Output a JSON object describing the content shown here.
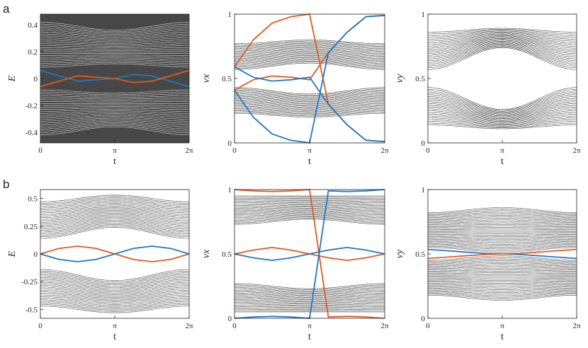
{
  "panel_labels": [
    "a",
    "b"
  ],
  "colors": {
    "blue": "#1f77c4",
    "orange": "#e05a1e",
    "bands": "#444444"
  },
  "chart_data": [
    {
      "type": "line",
      "panel": "a",
      "xlabel": "t",
      "ylabel": "E",
      "xticks": [
        "0",
        "π",
        "2π"
      ],
      "xlim": [
        0,
        6.2832
      ],
      "ylim": [
        -0.48,
        0.48
      ],
      "yticks": [
        -0.4,
        -0.2,
        0,
        0.2,
        0.4
      ],
      "ytick_labels": [
        "-0.4",
        "-0.2",
        "0",
        "0.2",
        "0.4"
      ],
      "bands": {
        "n": 24,
        "inner_min": 0.085,
        "inner_max": 0.11,
        "outer_min": 0.42,
        "outer_max": 0.36,
        "shape": "bump",
        "upper": true,
        "lower": true
      },
      "series": [
        {
          "color": "blue",
          "x": [
            0,
            0.785,
            1.571,
            2.356,
            3.142,
            3.927,
            4.712,
            5.498,
            6.283
          ],
          "values": [
            0.06,
            0.02,
            -0.02,
            -0.01,
            0.0,
            0.03,
            0.02,
            -0.02,
            -0.06
          ]
        },
        {
          "color": "orange",
          "x": [
            0,
            0.785,
            1.571,
            2.356,
            3.142,
            3.927,
            4.712,
            5.498,
            6.283
          ],
          "values": [
            -0.06,
            -0.02,
            0.02,
            0.01,
            0.0,
            -0.03,
            -0.02,
            0.02,
            0.06
          ]
        }
      ]
    },
    {
      "type": "line",
      "panel": "a",
      "xlabel": "t",
      "ylabel": "νx",
      "xticks": [
        "0",
        "π",
        "2π"
      ],
      "xlim": [
        0,
        6.2832
      ],
      "ylim": [
        0,
        1
      ],
      "yticks": [
        0,
        0.5,
        1
      ],
      "ytick_labels": [
        "0",
        "0.5",
        "1"
      ],
      "bands": {
        "n": 22,
        "inner_min": 0.3,
        "inner_max": 0.27,
        "outer_min": 0.12,
        "outer_max": 0.07,
        "shape": "dip",
        "upper": true,
        "lower": true,
        "around": 0.5
      },
      "series": [
        {
          "color": "orange",
          "x": [
            0,
            0.785,
            1.571,
            2.356,
            3.142,
            3.927,
            4.712,
            5.498,
            6.283
          ],
          "values": [
            0.41,
            0.49,
            0.52,
            0.51,
            0.49,
            0.7,
            0.86,
            0.98,
            0.99
          ]
        },
        {
          "color": "orange",
          "x": [
            0,
            0.785,
            1.571,
            2.356,
            3.142,
            3.927,
            4.712,
            5.498,
            6.283
          ],
          "values": [
            0.59,
            0.8,
            0.93,
            0.98,
            1.0,
            0.3,
            0.14,
            0.02,
            0.01
          ]
        },
        {
          "color": "blue",
          "x": [
            0,
            0.785,
            1.571,
            2.356,
            3.142,
            3.927,
            4.712,
            5.498,
            6.283
          ],
          "values": [
            0.59,
            0.51,
            0.48,
            0.49,
            0.51,
            0.3,
            0.14,
            0.02,
            0.01
          ]
        },
        {
          "color": "blue",
          "x": [
            0,
            0.785,
            1.571,
            2.356,
            3.142,
            3.927,
            4.712,
            5.498,
            6.283
          ],
          "values": [
            0.41,
            0.2,
            0.07,
            0.02,
            0.0,
            0.7,
            0.86,
            0.98,
            0.99
          ]
        }
      ]
    },
    {
      "type": "line",
      "panel": "a",
      "xlabel": "t",
      "ylabel": "νy",
      "xticks": [
        "0",
        "π",
        "2π"
      ],
      "xlim": [
        0,
        6.2832
      ],
      "ylim": [
        0,
        1
      ],
      "yticks": [
        0,
        0.5,
        1
      ],
      "ytick_labels": [
        "0",
        "0.5",
        "1"
      ],
      "bands": {
        "n": 22,
        "inner_min": 0.24,
        "inner_max": 0.07,
        "outer_min": 0.39,
        "outer_max": 0.36,
        "shape": "dip",
        "upper": true,
        "lower": true,
        "around": 0.5
      },
      "series": []
    },
    {
      "type": "line",
      "panel": "b",
      "xlabel": "t",
      "ylabel": "E",
      "xticks": [
        "0",
        "π",
        "2π"
      ],
      "xlim": [
        0,
        6.2832
      ],
      "ylim": [
        -0.58,
        0.58
      ],
      "yticks": [
        -0.5,
        -0.25,
        0,
        0.25,
        0.5
      ],
      "ytick_labels": [
        "-0.5",
        "-0.25",
        "0",
        "0.25",
        "0.5"
      ],
      "bands": {
        "n": 24,
        "inner_min": 0.14,
        "inner_max": 0.24,
        "outer_min": 0.47,
        "outer_max": 0.53,
        "shape": "bump",
        "upper": true,
        "lower": true
      },
      "series": [
        {
          "color": "orange",
          "x": [
            0,
            0.785,
            1.571,
            2.356,
            3.142,
            3.927,
            4.712,
            5.498,
            6.283
          ],
          "values": [
            0,
            0.05,
            0.07,
            0.05,
            0,
            -0.05,
            -0.07,
            -0.05,
            0
          ]
        },
        {
          "color": "blue",
          "x": [
            0,
            0.785,
            1.571,
            2.356,
            3.142,
            3.927,
            4.712,
            5.498,
            6.283
          ],
          "values": [
            0,
            -0.05,
            -0.07,
            -0.05,
            0,
            0.05,
            0.07,
            0.05,
            0
          ]
        }
      ]
    },
    {
      "type": "line",
      "panel": "b",
      "xlabel": "t",
      "ylabel": "νx",
      "xticks": [
        "0",
        "π",
        "2π"
      ],
      "xlim": [
        0,
        6.2832
      ],
      "ylim": [
        0,
        1
      ],
      "yticks": [
        0,
        0.5,
        1
      ],
      "ytick_labels": [
        "0",
        "0.5",
        "1"
      ],
      "bands": {
        "n": 22,
        "inner_min": 0.27,
        "inner_max": 0.23,
        "outer_min": 0.45,
        "outer_max": 0.45,
        "shape": "dip",
        "upper": true,
        "lower": true,
        "around": 0.5
      },
      "series": [
        {
          "color": "orange",
          "x": [
            0,
            0.785,
            1.571,
            2.356,
            3.142,
            3.927,
            4.712,
            5.498,
            6.283
          ],
          "values": [
            0.5,
            0.53,
            0.55,
            0.53,
            0.5,
            0.47,
            0.45,
            0.47,
            0.5
          ]
        },
        {
          "color": "blue",
          "x": [
            0,
            0.785,
            1.571,
            2.356,
            3.142,
            3.927,
            4.712,
            5.498,
            6.283
          ],
          "values": [
            0.5,
            0.47,
            0.45,
            0.47,
            0.5,
            0.53,
            0.55,
            0.53,
            0.5
          ]
        },
        {
          "color": "orange",
          "x": [
            0,
            0.785,
            1.571,
            2.356,
            3.142,
            3.927,
            4.712,
            5.498,
            6.283
          ],
          "values": [
            1.0,
            0.99,
            0.985,
            0.99,
            1.0,
            0.01,
            0.015,
            0.01,
            0.0
          ]
        },
        {
          "color": "blue",
          "x": [
            0,
            0.785,
            1.571,
            2.356,
            3.142,
            3.927,
            4.712,
            5.498,
            6.283
          ],
          "values": [
            0.0,
            0.01,
            0.015,
            0.01,
            0.0,
            0.99,
            0.985,
            0.99,
            1.0
          ]
        }
      ]
    },
    {
      "type": "line",
      "panel": "b",
      "xlabel": "t",
      "ylabel": "νy",
      "xticks": [
        "0",
        "π",
        "2π"
      ],
      "xlim": [
        0,
        6.2832
      ],
      "ylim": [
        0,
        1
      ],
      "yticks": [
        0,
        0.5,
        1
      ],
      "ytick_labels": [
        "0",
        "0.5",
        "1"
      ],
      "bands": {
        "n": 30,
        "inner_min": 0.015,
        "inner_max": 0.05,
        "outer_min": 0.36,
        "outer_max": 0.32,
        "shape": "dip",
        "upper": true,
        "lower": true,
        "around": 0.5
      },
      "series": [
        {
          "color": "blue",
          "x": [
            0,
            0.785,
            1.571,
            2.356,
            3.142,
            3.927,
            4.712,
            5.498,
            6.283
          ],
          "values": [
            0.535,
            0.525,
            0.515,
            0.505,
            0.5,
            0.495,
            0.485,
            0.475,
            0.465
          ]
        },
        {
          "color": "orange",
          "x": [
            0,
            0.785,
            1.571,
            2.356,
            3.142,
            3.927,
            4.712,
            5.498,
            6.283
          ],
          "values": [
            0.465,
            0.475,
            0.485,
            0.495,
            0.5,
            0.505,
            0.515,
            0.525,
            0.535
          ]
        }
      ]
    }
  ]
}
